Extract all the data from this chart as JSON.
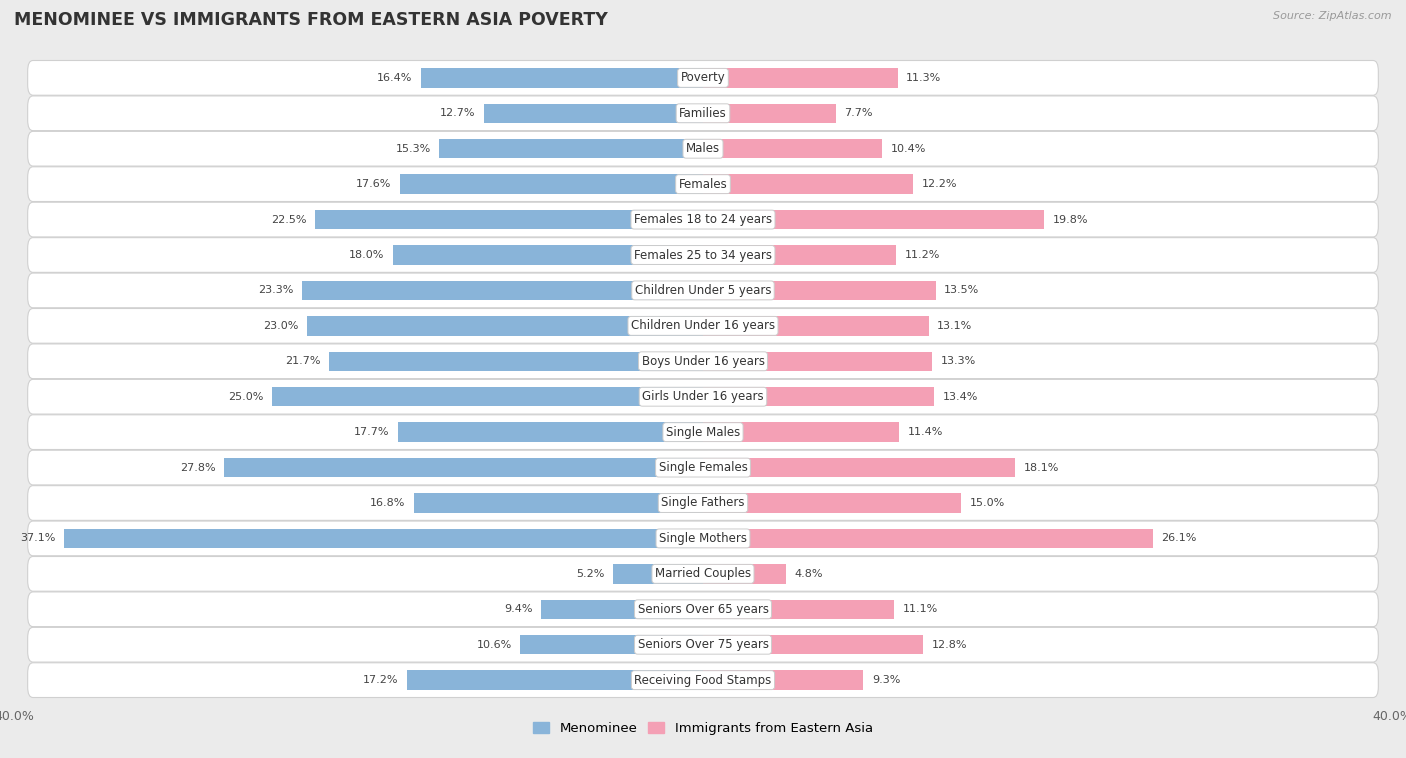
{
  "title": "MENOMINEE VS IMMIGRANTS FROM EASTERN ASIA POVERTY",
  "source": "Source: ZipAtlas.com",
  "categories": [
    "Poverty",
    "Families",
    "Males",
    "Females",
    "Females 18 to 24 years",
    "Females 25 to 34 years",
    "Children Under 5 years",
    "Children Under 16 years",
    "Boys Under 16 years",
    "Girls Under 16 years",
    "Single Males",
    "Single Females",
    "Single Fathers",
    "Single Mothers",
    "Married Couples",
    "Seniors Over 65 years",
    "Seniors Over 75 years",
    "Receiving Food Stamps"
  ],
  "menominee": [
    16.4,
    12.7,
    15.3,
    17.6,
    22.5,
    18.0,
    23.3,
    23.0,
    21.7,
    25.0,
    17.7,
    27.8,
    16.8,
    37.1,
    5.2,
    9.4,
    10.6,
    17.2
  ],
  "eastern_asia": [
    11.3,
    7.7,
    10.4,
    12.2,
    19.8,
    11.2,
    13.5,
    13.1,
    13.3,
    13.4,
    11.4,
    18.1,
    15.0,
    26.1,
    4.8,
    11.1,
    12.8,
    9.3
  ],
  "menominee_color": "#89b4d9",
  "eastern_asia_color": "#f4a0b5",
  "background_color": "#ebebeb",
  "row_background": "#ffffff",
  "row_border": "#d0d0d0",
  "xlim": 40.0,
  "bar_height": 0.55,
  "label_menominee": "Menominee",
  "label_eastern_asia": "Immigrants from Eastern Asia",
  "value_fontsize": 8.0,
  "category_fontsize": 8.5,
  "title_fontsize": 12.5
}
